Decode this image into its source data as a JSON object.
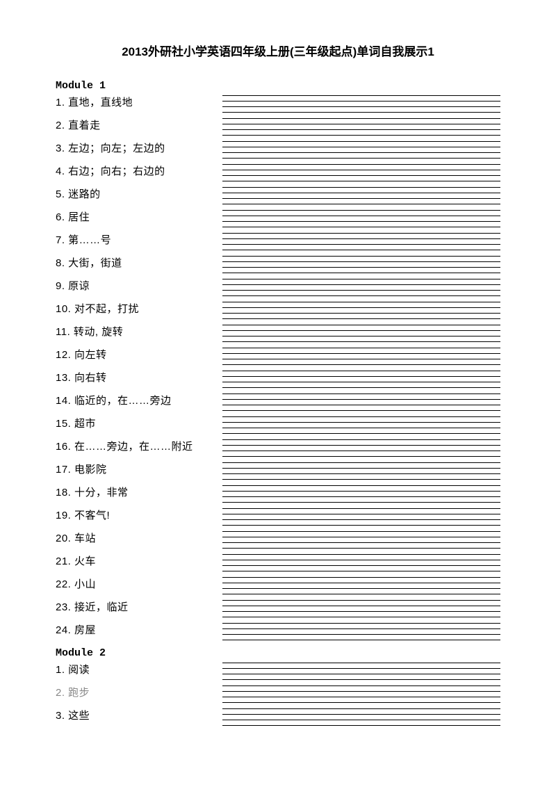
{
  "title": "2013外研社小学英语四年级上册(三年级起点)单词自我展示1",
  "modules": [
    {
      "header": "Module 1",
      "items": [
        {
          "num": "1.",
          "text": "直地，直线地",
          "gray": false
        },
        {
          "num": "2.",
          "text": "直着走",
          "gray": false
        },
        {
          "num": "3.",
          "text": "左边；向左；左边的",
          "gray": false
        },
        {
          "num": "4.",
          "text": "右边；向右；右边的",
          "gray": false
        },
        {
          "num": "5.",
          "text": "迷路的",
          "gray": false
        },
        {
          "num": "6.",
          "text": "居住",
          "gray": false
        },
        {
          "num": "7.",
          "text": "第……号",
          "gray": false
        },
        {
          "num": "8.",
          "text": "大街，街道",
          "gray": false
        },
        {
          "num": "9.",
          "text": "原谅",
          "gray": false
        },
        {
          "num": "10.",
          "text": "对不起，打扰",
          "gray": false
        },
        {
          "num": "11.",
          "text": "转动, 旋转",
          "gray": false
        },
        {
          "num": "12.",
          "text": "向左转",
          "gray": false
        },
        {
          "num": "13.",
          "text": "向右转",
          "gray": false
        },
        {
          "num": "14.",
          "text": "临近的，在……旁边",
          "gray": false
        },
        {
          "num": "15.",
          "text": "超市",
          "gray": false
        },
        {
          "num": "16.",
          "text": "在……旁边，在……附近",
          "gray": false
        },
        {
          "num": "17.",
          "text": "电影院",
          "gray": false
        },
        {
          "num": "18.",
          "text": "十分，非常",
          "gray": false
        },
        {
          "num": "19.",
          "text": "不客气!",
          "gray": false
        },
        {
          "num": "20.",
          "text": "车站",
          "gray": false
        },
        {
          "num": "21.",
          "text": "火车",
          "gray": false
        },
        {
          "num": "22.",
          "text": "小山",
          "gray": false
        },
        {
          "num": "23.",
          "text": "接近，临近",
          "gray": false
        },
        {
          "num": "24.",
          "text": "房屋",
          "gray": false
        }
      ]
    },
    {
      "header": "Module 2",
      "items": [
        {
          "num": "1.",
          "text": "阅读",
          "gray": false
        },
        {
          "num": "2.",
          "text": "跑步",
          "gray": true
        },
        {
          "num": "3.",
          "text": "这些",
          "gray": false
        }
      ]
    }
  ]
}
